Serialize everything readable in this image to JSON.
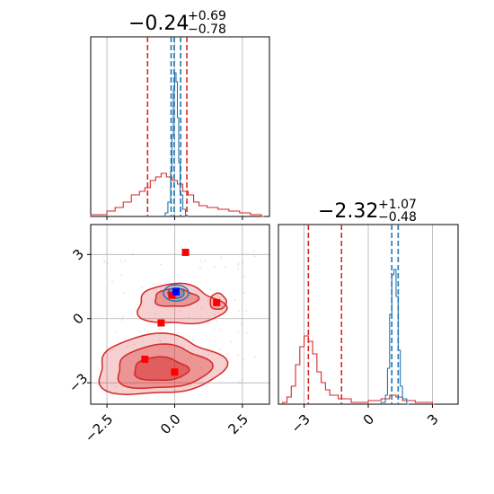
{
  "colors": {
    "red": "#d62728",
    "blue": "#1f77b4",
    "marker_red": "#ff0000",
    "marker_blue": "#0000ff",
    "grid": "#b0b0b0",
    "axes": "#000000"
  },
  "chart_data": [
    {
      "panel": "top-left",
      "type": "histogram",
      "title": {
        "value": "−0.24",
        "sup": "+0.69",
        "sub": "−0.78"
      },
      "xlim": [
        -3.1,
        3.5
      ],
      "ylim": [
        0,
        1.0
      ],
      "grid": true,
      "x_ticks": [
        -2.5,
        0.0,
        2.5
      ],
      "tick_labels_shown": false,
      "series": [
        {
          "color": "red",
          "bins": [
            [
              -3.1,
              0.01
            ],
            [
              -2.5,
              0.03
            ],
            [
              -2.2,
              0.05
            ],
            [
              -1.9,
              0.08
            ],
            [
              -1.6,
              0.12
            ],
            [
              -1.3,
              0.14
            ],
            [
              -1.1,
              0.16
            ],
            [
              -0.9,
              0.2
            ],
            [
              -0.7,
              0.22
            ],
            [
              -0.5,
              0.24
            ],
            [
              -0.3,
              0.22
            ],
            [
              -0.1,
              0.2
            ],
            [
              0.1,
              0.18
            ],
            [
              0.3,
              0.14
            ],
            [
              0.5,
              0.12
            ],
            [
              0.7,
              0.08
            ],
            [
              0.9,
              0.06
            ],
            [
              1.2,
              0.05
            ],
            [
              1.6,
              0.04
            ],
            [
              2.0,
              0.03
            ],
            [
              2.4,
              0.02
            ],
            [
              2.8,
              0.01
            ],
            [
              3.2,
              0.0
            ]
          ],
          "quantile_lines": [
            -1.0,
            0.45
          ]
        },
        {
          "color": "blue",
          "bins": [
            [
              -0.35,
              0.02
            ],
            [
              -0.25,
              0.08
            ],
            [
              -0.15,
              0.25
            ],
            [
              -0.1,
              0.45
            ],
            [
              -0.05,
              0.7
            ],
            [
              0.0,
              0.8
            ],
            [
              0.05,
              0.75
            ],
            [
              0.1,
              0.55
            ],
            [
              0.15,
              0.3
            ],
            [
              0.2,
              0.12
            ],
            [
              0.3,
              0.04
            ],
            [
              0.4,
              0.0
            ]
          ],
          "quantile_lines": [
            -0.13,
            -0.02,
            0.22
          ]
        }
      ]
    },
    {
      "panel": "bottom-left",
      "type": "scatter",
      "xlim": [
        -3.1,
        3.5
      ],
      "ylim": [
        -4.0,
        4.4
      ],
      "grid": true,
      "x_ticks": [
        -2.5,
        0.0,
        2.5
      ],
      "x_tick_labels": [
        "−2.5",
        "0.0",
        "2.5"
      ],
      "y_ticks": [
        -3,
        0,
        3
      ],
      "y_tick_labels": [
        "−3",
        "0",
        "3"
      ],
      "red_markers": [
        {
          "x": 0.4,
          "y": 3.1
        },
        {
          "x": -0.5,
          "y": -0.2
        },
        {
          "x": -1.1,
          "y": -1.9
        },
        {
          "x": 0.0,
          "y": -2.5
        },
        {
          "x": 1.55,
          "y": 0.75
        },
        {
          "x": -0.1,
          "y": 1.1
        }
      ],
      "blue_markers": [
        {
          "x": 0.05,
          "y": 1.25
        }
      ]
    },
    {
      "panel": "bottom-right",
      "type": "histogram",
      "title": {
        "value": "−2.32",
        "sup": "+1.07",
        "sub": "−0.48"
      },
      "xlim": [
        -4.2,
        4.2
      ],
      "ylim": [
        0,
        1.0
      ],
      "grid": true,
      "x_ticks": [
        -3,
        0,
        3
      ],
      "x_tick_labels": [
        "−3",
        "0",
        "3"
      ],
      "series": [
        {
          "color": "red",
          "bins": [
            [
              -4.0,
              0.01
            ],
            [
              -3.8,
              0.04
            ],
            [
              -3.6,
              0.1
            ],
            [
              -3.4,
              0.22
            ],
            [
              -3.2,
              0.32
            ],
            [
              -3.0,
              0.38
            ],
            [
              -2.8,
              0.35
            ],
            [
              -2.6,
              0.28
            ],
            [
              -2.4,
              0.18
            ],
            [
              -2.2,
              0.12
            ],
            [
              -2.0,
              0.08
            ],
            [
              -1.8,
              0.05
            ],
            [
              -1.4,
              0.03
            ],
            [
              -0.8,
              0.01
            ],
            [
              0.0,
              0.02
            ],
            [
              0.6,
              0.03
            ],
            [
              1.0,
              0.05
            ],
            [
              1.3,
              0.04
            ],
            [
              1.6,
              0.02
            ],
            [
              2.2,
              0.01
            ],
            [
              3.0,
              0.0
            ]
          ],
          "quantile_lines": [
            -2.8,
            -1.25
          ]
        },
        {
          "color": "blue",
          "bins": [
            [
              0.6,
              0.01
            ],
            [
              0.8,
              0.05
            ],
            [
              0.9,
              0.2
            ],
            [
              1.0,
              0.5
            ],
            [
              1.1,
              0.72
            ],
            [
              1.2,
              0.75
            ],
            [
              1.3,
              0.6
            ],
            [
              1.4,
              0.3
            ],
            [
              1.5,
              0.1
            ],
            [
              1.6,
              0.03
            ],
            [
              1.8,
              0.0
            ]
          ],
          "quantile_lines": [
            1.1,
            1.4
          ]
        }
      ]
    }
  ]
}
